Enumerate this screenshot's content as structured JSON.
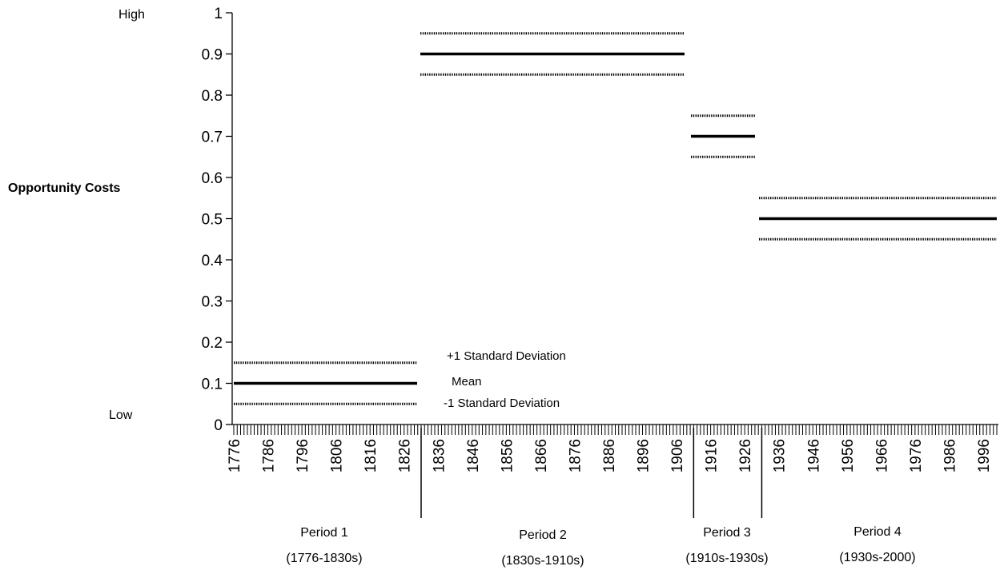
{
  "chart_data": {
    "type": "line",
    "ylabel": "Opportunity Costs",
    "ylim": [
      0,
      1
    ],
    "y_ticks": [
      "0",
      "0.1",
      "0.2",
      "0.3",
      "0.4",
      "0.5",
      "0.6",
      "0.7",
      "0.8",
      "0.9",
      "1"
    ],
    "y_extremes": {
      "high": "High",
      "low": "Low"
    },
    "x_range": [
      1776,
      2000
    ],
    "x_tick_labels": [
      "1776",
      "1786",
      "1796",
      "1806",
      "1816",
      "1826",
      "1836",
      "1846",
      "1856",
      "1866",
      "1876",
      "1886",
      "1896",
      "1906",
      "1916",
      "1926",
      "1936",
      "1946",
      "1956",
      "1966",
      "1976",
      "1986",
      "1996"
    ],
    "period_boundaries": [
      1831,
      1911,
      1931
    ],
    "periods": [
      {
        "name": "Period  1",
        "span": "(1776-1830s)",
        "start": 1776,
        "end": 1831,
        "mean": 0.1,
        "plus_sd": 0.15,
        "minus_sd": 0.05
      },
      {
        "name": "Period  2",
        "span": "(1830s-1910s)",
        "start": 1831,
        "end": 1911,
        "mean": 0.9,
        "plus_sd": 0.95,
        "minus_sd": 0.85
      },
      {
        "name": "Period  3",
        "span": "(1910s-1930s)",
        "start": 1911,
        "end": 1931,
        "mean": 0.7,
        "plus_sd": 0.75,
        "minus_sd": 0.65
      },
      {
        "name": "Period  4",
        "span": "(1930s-2000)",
        "start": 1931,
        "end": 2000,
        "mean": 0.5,
        "plus_sd": 0.55,
        "minus_sd": 0.45
      }
    ],
    "legend": {
      "plus_sd": "+1 Standard Deviation",
      "mean": "Mean",
      "minus_sd": "-1 Standard Deviation"
    }
  }
}
